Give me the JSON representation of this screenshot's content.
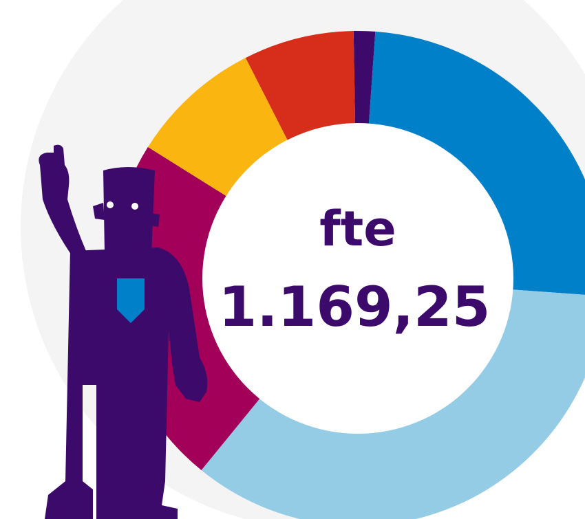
{
  "chart_data": {
    "type": "donut",
    "center_label": "fte",
    "center_value": "1.169,25",
    "values": [
      1.4,
      25,
      34.7,
      23,
      8.6,
      7.2
    ],
    "colors": [
      "#3d0a6b",
      "#0080c9",
      "#94cce6",
      "#a3005a",
      "#fbb510",
      "#d62e1a"
    ]
  }
}
